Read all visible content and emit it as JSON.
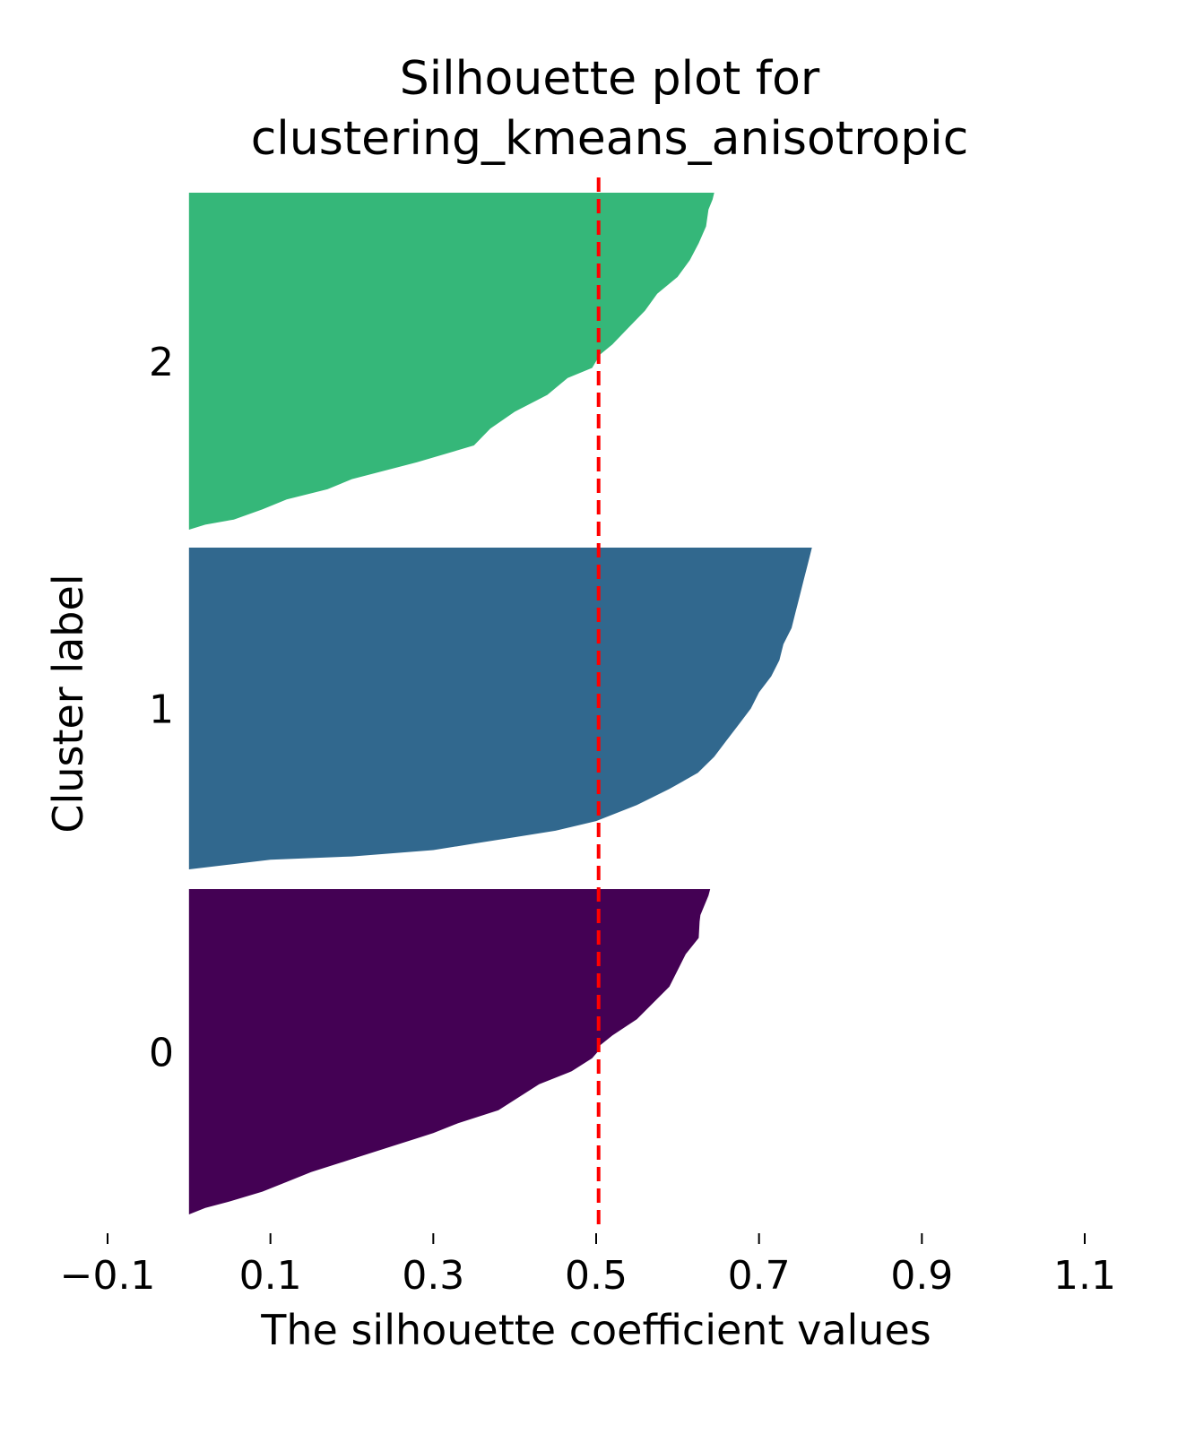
{
  "chart_data": {
    "type": "area",
    "title": "Silhouette plot for\nclustering_kmeans_anisotropic",
    "xlabel": "The silhouette coefficient values",
    "ylabel": "Cluster label",
    "xlim": [
      -0.1,
      1.1
    ],
    "xticks": [
      -0.1,
      0.1,
      0.3,
      0.5,
      0.7,
      0.9,
      1.1
    ],
    "xtick_labels": [
      "−0.1",
      "0.1",
      "0.3",
      "0.5",
      "0.7",
      "0.9",
      "1.1"
    ],
    "grid": false,
    "average_silhouette": 0.503,
    "average_line_color": "#ff0000",
    "clusters": [
      {
        "label": "0",
        "color": "#440154",
        "profile": [
          [
            0.0,
            0.64
          ],
          [
            0.02,
            0.638
          ],
          [
            0.05,
            0.633
          ],
          [
            0.08,
            0.628
          ],
          [
            0.1,
            0.627
          ],
          [
            0.15,
            0.626
          ],
          [
            0.2,
            0.61
          ],
          [
            0.25,
            0.6
          ],
          [
            0.3,
            0.59
          ],
          [
            0.35,
            0.57
          ],
          [
            0.4,
            0.55
          ],
          [
            0.45,
            0.52
          ],
          [
            0.48,
            0.505
          ],
          [
            0.5,
            0.502
          ],
          [
            0.52,
            0.495
          ],
          [
            0.56,
            0.47
          ],
          [
            0.6,
            0.43
          ],
          [
            0.64,
            0.405
          ],
          [
            0.68,
            0.38
          ],
          [
            0.72,
            0.33
          ],
          [
            0.75,
            0.3
          ],
          [
            0.79,
            0.25
          ],
          [
            0.83,
            0.2
          ],
          [
            0.87,
            0.15
          ],
          [
            0.9,
            0.12
          ],
          [
            0.93,
            0.09
          ],
          [
            0.96,
            0.05
          ],
          [
            0.98,
            0.02
          ],
          [
            1.0,
            0.0
          ],
          [
            1.0,
            -0.01
          ]
        ]
      },
      {
        "label": "1",
        "color": "#31688e",
        "profile": [
          [
            0.0,
            0.765
          ],
          [
            0.02,
            0.763
          ],
          [
            0.05,
            0.76
          ],
          [
            0.1,
            0.755
          ],
          [
            0.15,
            0.75
          ],
          [
            0.2,
            0.745
          ],
          [
            0.25,
            0.74
          ],
          [
            0.3,
            0.73
          ],
          [
            0.35,
            0.725
          ],
          [
            0.4,
            0.715
          ],
          [
            0.45,
            0.7
          ],
          [
            0.5,
            0.69
          ],
          [
            0.55,
            0.675
          ],
          [
            0.6,
            0.66
          ],
          [
            0.65,
            0.645
          ],
          [
            0.7,
            0.625
          ],
          [
            0.75,
            0.59
          ],
          [
            0.8,
            0.55
          ],
          [
            0.85,
            0.5
          ],
          [
            0.88,
            0.45
          ],
          [
            0.9,
            0.4
          ],
          [
            0.92,
            0.35
          ],
          [
            0.94,
            0.3
          ],
          [
            0.96,
            0.2
          ],
          [
            0.97,
            0.1
          ],
          [
            0.985,
            0.05
          ],
          [
            1.0,
            0.0
          ],
          [
            1.0,
            -0.02
          ]
        ]
      },
      {
        "label": "2",
        "color": "#35b779",
        "profile": [
          [
            0.0,
            0.645
          ],
          [
            0.02,
            0.643
          ],
          [
            0.05,
            0.638
          ],
          [
            0.1,
            0.635
          ],
          [
            0.15,
            0.626
          ],
          [
            0.2,
            0.615
          ],
          [
            0.25,
            0.6
          ],
          [
            0.3,
            0.575
          ],
          [
            0.35,
            0.56
          ],
          [
            0.4,
            0.54
          ],
          [
            0.45,
            0.52
          ],
          [
            0.48,
            0.505
          ],
          [
            0.5,
            0.5
          ],
          [
            0.52,
            0.495
          ],
          [
            0.55,
            0.465
          ],
          [
            0.6,
            0.44
          ],
          [
            0.65,
            0.4
          ],
          [
            0.7,
            0.37
          ],
          [
            0.75,
            0.35
          ],
          [
            0.8,
            0.28
          ],
          [
            0.85,
            0.2
          ],
          [
            0.88,
            0.17
          ],
          [
            0.91,
            0.12
          ],
          [
            0.94,
            0.09
          ],
          [
            0.97,
            0.055
          ],
          [
            0.985,
            0.02
          ],
          [
            1.0,
            0.0
          ],
          [
            1.0,
            -0.015
          ]
        ]
      }
    ]
  }
}
